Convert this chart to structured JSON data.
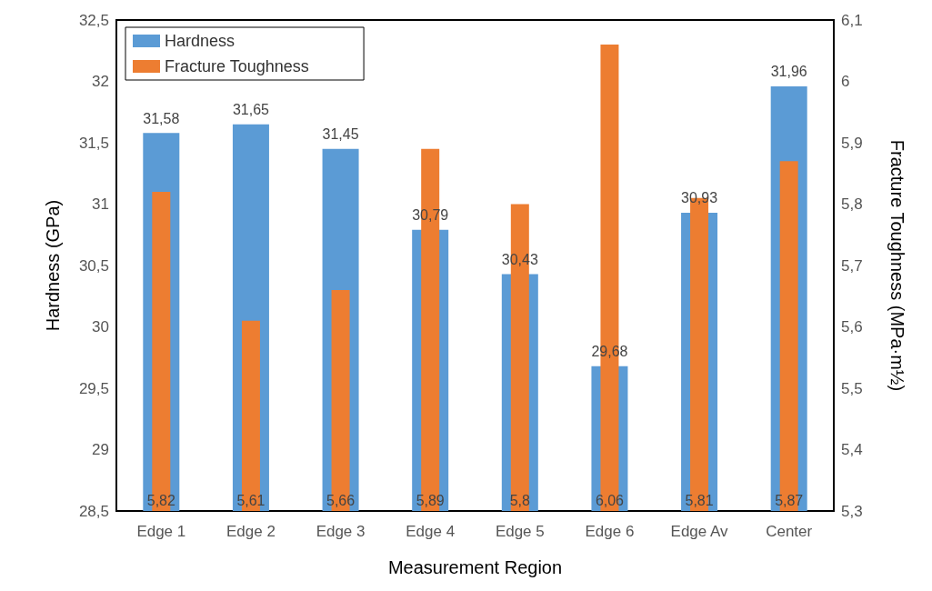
{
  "chart_data": {
    "type": "bar",
    "xlabel": "Measurement Region",
    "ylabel": "Hardness (GPa)",
    "y2label": "Fracture Toughness (MPa·m½)",
    "categories": [
      "Edge 1",
      "Edge 2",
      "Edge 3",
      "Edge 4",
      "Edge 5",
      "Edge 6",
      "Edge Av",
      "Center"
    ],
    "series": [
      {
        "name": "Hardness",
        "color": "#5b9bd5",
        "values": [
          31.58,
          31.65,
          31.45,
          30.79,
          30.43,
          29.68,
          30.93,
          31.96
        ],
        "value_labels": [
          "31,58",
          "31,65",
          "31,45",
          "30,79",
          "30,43",
          "29,68",
          "30,93",
          "31,96"
        ]
      },
      {
        "name": "Fracture Toughness",
        "color": "#ed7d31",
        "axis": "y2",
        "values": [
          5.82,
          5.61,
          5.66,
          5.89,
          5.8,
          6.06,
          5.81,
          5.87
        ],
        "value_labels": [
          "5,82",
          "5,61",
          "5,66",
          "5,89",
          "5,8",
          "6,06",
          "5,81",
          "5,87"
        ]
      }
    ],
    "ylim": [
      28.5,
      32.5
    ],
    "yticks": [
      {
        "value": 28.5,
        "label": "28,5"
      },
      29,
      {
        "value": 29.5,
        "label": "29,5"
      },
      30,
      {
        "value": 30.5,
        "label": "30,5"
      },
      31,
      {
        "value": 31.5,
        "label": "31,5"
      },
      32,
      {
        "value": 32.5,
        "label": "32,5"
      }
    ],
    "y2lim": [
      5.3,
      6.1
    ],
    "y2ticks": [
      {
        "value": 5.3,
        "label": "5,3"
      },
      {
        "value": 5.4,
        "label": "5,4"
      },
      {
        "value": 5.5,
        "label": "5,5"
      },
      {
        "value": 5.6,
        "label": "5,6"
      },
      {
        "value": 5.7,
        "label": "5,7"
      },
      {
        "value": 5.8,
        "label": "5,8"
      },
      {
        "value": 5.9,
        "label": "5,9"
      },
      6,
      {
        "value": 6.1,
        "label": "6,1"
      }
    ],
    "legend": "top left",
    "grid": false
  }
}
